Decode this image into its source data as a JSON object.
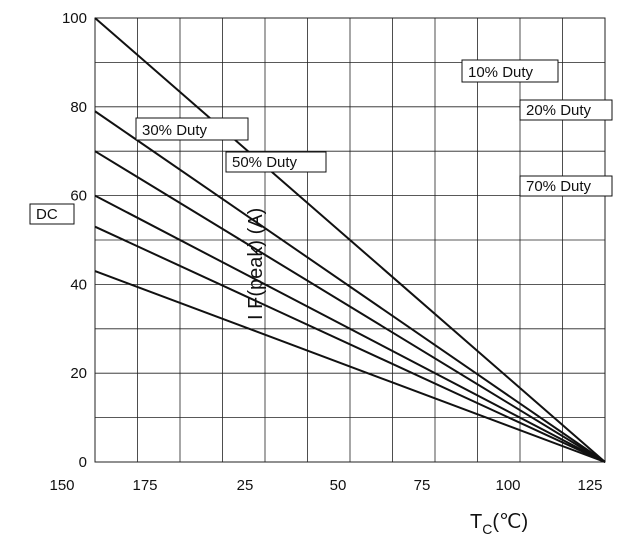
{
  "chart_data": {
    "type": "line",
    "title": "",
    "xlabel_main": "T",
    "xlabel_sub": "C",
    "xlabel_unit": "(℃)",
    "ylabel": "I F(peak) (A)",
    "x_tick_labels": [
      "25",
      "50",
      "75",
      "100",
      "125",
      "150",
      "175"
    ],
    "y_tick_labels": [
      "0",
      "20",
      "40",
      "60",
      "80",
      "100"
    ],
    "xlim": [
      25,
      175
    ],
    "ylim": [
      0,
      100
    ],
    "grid": true,
    "series": [
      {
        "name": "10% Duty",
        "x": [
          25,
          175
        ],
        "y": [
          100,
          0
        ]
      },
      {
        "name": "20% Duty",
        "x": [
          25,
          175
        ],
        "y": [
          79,
          0
        ]
      },
      {
        "name": "30% Duty",
        "x": [
          25,
          175
        ],
        "y": [
          70,
          0
        ]
      },
      {
        "name": "50% Duty",
        "x": [
          25,
          175
        ],
        "y": [
          60,
          0
        ]
      },
      {
        "name": "70% Duty",
        "x": [
          25,
          175
        ],
        "y": [
          53,
          0
        ]
      },
      {
        "name": "DC",
        "x": [
          25,
          175
        ],
        "y": [
          43,
          0
        ]
      }
    ]
  },
  "colors": {
    "line": "#111111",
    "grid": "#222222",
    "background": "#ffffff"
  }
}
